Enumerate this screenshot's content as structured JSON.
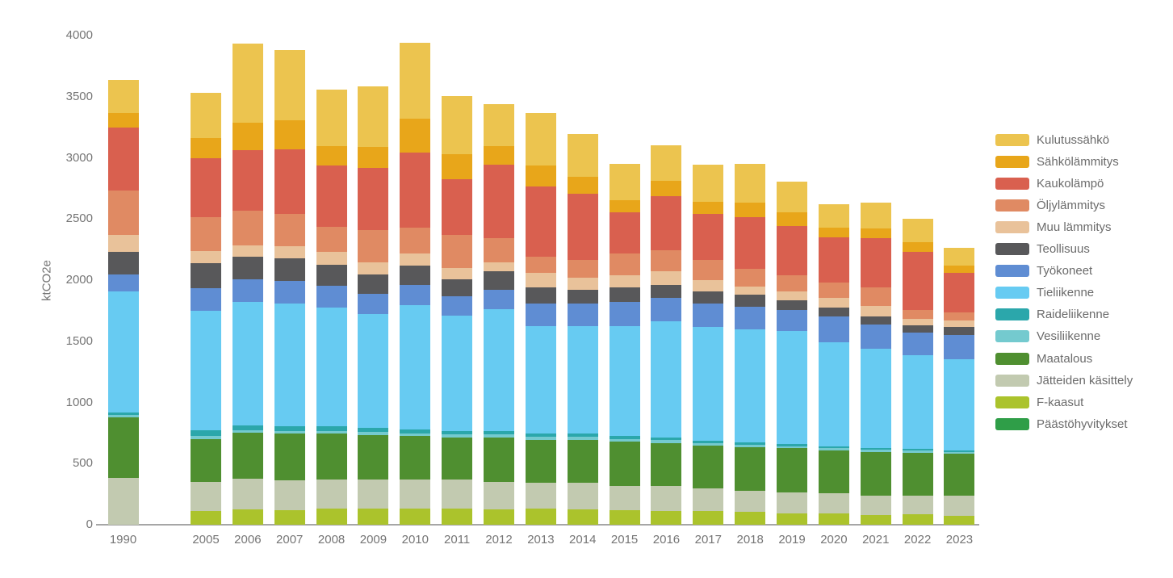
{
  "chart_data": {
    "type": "bar",
    "stacked": true,
    "title": "",
    "xlabel": "",
    "ylabel": "ktCO2e",
    "unit": "ktCO2e",
    "ylim": [
      0,
      4000
    ],
    "y_ticks": [
      0,
      500,
      1000,
      1500,
      2000,
      2500,
      3000,
      3500,
      4000
    ],
    "grid": false,
    "legend_position": "right",
    "categories": [
      "1990",
      "2005",
      "2006",
      "2007",
      "2008",
      "2009",
      "2010",
      "2011",
      "2012",
      "2013",
      "2014",
      "2015",
      "2016",
      "2017",
      "2018",
      "2019",
      "2020",
      "2021",
      "2022",
      "2023"
    ],
    "series": [
      {
        "name": "Kulutussähkö",
        "color": "#ecc44f",
        "values": [
          275,
          370,
          650,
          575,
          460,
          495,
          620,
          475,
          345,
          430,
          350,
          295,
          295,
          305,
          315,
          255,
          190,
          210,
          190,
          145
        ]
      },
      {
        "name": "Sähkölämmitys",
        "color": "#e8a61a",
        "values": [
          120,
          165,
          220,
          235,
          160,
          175,
          280,
          210,
          150,
          175,
          140,
          105,
          120,
          100,
          120,
          110,
          80,
          80,
          85,
          65
        ]
      },
      {
        "name": "Kaukolämpö",
        "color": "#d9604f",
        "values": [
          515,
          485,
          495,
          530,
          505,
          505,
          610,
          450,
          600,
          570,
          545,
          335,
          445,
          375,
          420,
          405,
          370,
          405,
          470,
          320
        ]
      },
      {
        "name": "Öljylämmitys",
        "color": "#e08a63",
        "values": [
          360,
          275,
          285,
          265,
          205,
          265,
          215,
          275,
          200,
          135,
          145,
          175,
          175,
          165,
          145,
          130,
          125,
          150,
          75,
          65
        ]
      },
      {
        "name": "Muu lämmitys",
        "color": "#e9c29a",
        "values": [
          140,
          100,
          90,
          100,
          100,
          100,
          100,
          90,
          75,
          115,
          100,
          100,
          110,
          90,
          70,
          75,
          80,
          90,
          50,
          55
        ]
      },
      {
        "name": "Teollisuus",
        "color": "#58585a",
        "values": [
          185,
          200,
          185,
          185,
          175,
          155,
          155,
          140,
          150,
          135,
          110,
          120,
          105,
          105,
          95,
          75,
          75,
          65,
          60,
          65
        ]
      },
      {
        "name": "Työkoneet",
        "color": "#5f8dd3",
        "values": [
          140,
          185,
          185,
          185,
          175,
          165,
          165,
          155,
          160,
          185,
          185,
          195,
          190,
          190,
          185,
          175,
          210,
          195,
          190,
          200
        ]
      },
      {
        "name": "Tieliikenne",
        "color": "#67cbf2",
        "values": [
          985,
          980,
          1010,
          1000,
          975,
          935,
          1015,
          945,
          995,
          880,
          880,
          900,
          950,
          930,
          925,
          925,
          850,
          815,
          765,
          745
        ]
      },
      {
        "name": "Raideliikenne",
        "color": "#2ba7ab",
        "values": [
          25,
          44,
          40,
          38,
          36,
          33,
          35,
          30,
          28,
          26,
          25,
          25,
          23,
          20,
          18,
          15,
          13,
          12,
          11,
          10
        ]
      },
      {
        "name": "Vesiliikenne",
        "color": "#74cacf",
        "values": [
          20,
          28,
          25,
          24,
          23,
          22,
          22,
          23,
          23,
          23,
          23,
          22,
          22,
          21,
          21,
          18,
          19,
          19,
          18,
          17
        ]
      },
      {
        "name": "Maatalous",
        "color": "#4f8f30",
        "values": [
          495,
          350,
          375,
          385,
          375,
          365,
          355,
          345,
          365,
          355,
          355,
          360,
          355,
          345,
          360,
          360,
          355,
          355,
          350,
          345
        ]
      },
      {
        "name": "Jätteiden käsittely",
        "color": "#c2cab0",
        "values": [
          380,
          240,
          250,
          240,
          235,
          240,
          235,
          240,
          225,
          210,
          215,
          200,
          205,
          185,
          170,
          170,
          165,
          160,
          155,
          165
        ]
      },
      {
        "name": "F-kaasut",
        "color": "#abc32c",
        "values": [
          0,
          110,
          125,
          120,
          135,
          130,
          135,
          130,
          125,
          130,
          125,
          120,
          110,
          115,
          105,
          95,
          90,
          80,
          85,
          70
        ]
      },
      {
        "name": "Päästöhyvitykset",
        "color": "#2f9e48",
        "values": [
          0,
          0,
          0,
          0,
          0,
          0,
          0,
          0,
          0,
          0,
          0,
          0,
          0,
          0,
          0,
          0,
          0,
          0,
          0,
          0
        ]
      }
    ]
  }
}
